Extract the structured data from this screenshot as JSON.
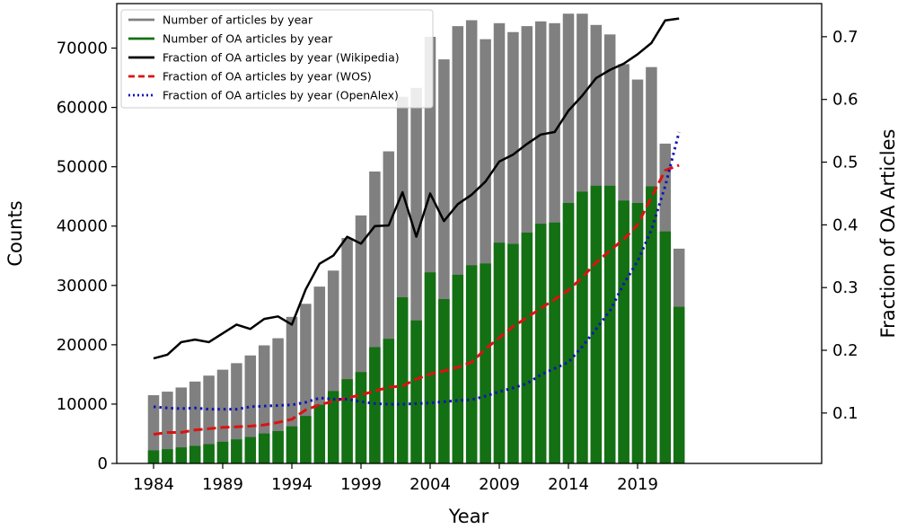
{
  "chart_data": {
    "type": "bar",
    "xlabel": "Year",
    "ylabel_left": "Counts",
    "ylabel_right": "Fraction of OA Articles",
    "years": [
      1984,
      1985,
      1986,
      1987,
      1988,
      1989,
      1990,
      1991,
      1992,
      1993,
      1994,
      1995,
      1996,
      1997,
      1998,
      1999,
      2000,
      2001,
      2002,
      2003,
      2004,
      2005,
      2006,
      2007,
      2008,
      2009,
      2010,
      2011,
      2012,
      2013,
      2014,
      2015,
      2016,
      2017,
      2018,
      2019,
      2020,
      2021,
      2022
    ],
    "x_ticks": [
      1984,
      1989,
      1994,
      1999,
      2004,
      2009,
      2014,
      2019
    ],
    "y_left_ticks": [
      0,
      10000,
      20000,
      30000,
      40000,
      50000,
      60000,
      70000
    ],
    "y_left_lim": [
      0,
      77500
    ],
    "y_right_ticks": [
      0.1,
      0.2,
      0.3,
      0.4,
      0.5,
      0.6,
      0.7
    ],
    "y_right_lim": [
      0.0196,
      0.7528
    ],
    "colors": {
      "total_bars": "#808080",
      "oa_bars": "#137013",
      "wikipedia": "#000000",
      "wos": "#dd1111",
      "openalex": "#1111bb"
    },
    "bars": [
      {
        "name": "Number of articles by year",
        "values": [
          11500,
          12100,
          12800,
          13800,
          14800,
          15800,
          16900,
          18200,
          19900,
          21100,
          24700,
          26900,
          29800,
          32500,
          38000,
          41800,
          49200,
          52600,
          61800,
          63300,
          71900,
          68100,
          73700,
          74700,
          71500,
          74200,
          72700,
          73700,
          74500,
          74200,
          75800,
          75800,
          73900,
          72300,
          67300,
          64700,
          66800,
          53900,
          36200
        ]
      },
      {
        "name": "Number of OA articles by year",
        "values": [
          2200,
          2400,
          2700,
          2950,
          3250,
          3650,
          4050,
          4450,
          5050,
          5450,
          6250,
          8000,
          9900,
          12200,
          14200,
          15400,
          19600,
          21000,
          28000,
          24100,
          32200,
          27700,
          31800,
          33400,
          33700,
          37200,
          37000,
          38900,
          40400,
          40600,
          43900,
          45800,
          46800,
          46800,
          44300,
          43900,
          46700,
          39100,
          26400
        ]
      }
    ],
    "lines": [
      {
        "name": "Fraction of OA articles by year (Wikipedia)",
        "style": "solid",
        "values": [
          0.187,
          0.193,
          0.213,
          0.217,
          0.213,
          0.227,
          0.241,
          0.234,
          0.25,
          0.254,
          0.241,
          0.297,
          0.338,
          0.351,
          0.381,
          0.37,
          0.398,
          0.399,
          0.452,
          0.381,
          0.45,
          0.406,
          0.433,
          0.448,
          0.469,
          0.501,
          0.512,
          0.529,
          0.544,
          0.548,
          0.582,
          0.606,
          0.634,
          0.647,
          0.657,
          0.672,
          0.69,
          0.726,
          0.729
        ]
      },
      {
        "name": "Fraction of OA articles by year (WOS)",
        "style": "dashed",
        "values": [
          0.066,
          0.069,
          0.069,
          0.073,
          0.075,
          0.077,
          0.078,
          0.079,
          0.081,
          0.085,
          0.09,
          0.105,
          0.113,
          0.119,
          0.124,
          0.129,
          0.135,
          0.141,
          0.143,
          0.154,
          0.162,
          0.167,
          0.173,
          0.181,
          0.202,
          0.22,
          0.238,
          0.252,
          0.267,
          0.281,
          0.296,
          0.316,
          0.34,
          0.359,
          0.377,
          0.4,
          0.444,
          0.487,
          0.495
        ]
      },
      {
        "name": "Fraction of OA articles by year (OpenAlex)",
        "style": "dotted",
        "values": [
          0.11,
          0.108,
          0.107,
          0.108,
          0.106,
          0.106,
          0.106,
          0.11,
          0.111,
          0.112,
          0.113,
          0.117,
          0.124,
          0.122,
          0.122,
          0.118,
          0.115,
          0.114,
          0.114,
          0.115,
          0.116,
          0.118,
          0.12,
          0.121,
          0.127,
          0.134,
          0.14,
          0.147,
          0.161,
          0.171,
          0.181,
          0.206,
          0.234,
          0.263,
          0.306,
          0.342,
          0.392,
          0.462,
          0.548
        ]
      }
    ],
    "legend_position": "top-left"
  }
}
